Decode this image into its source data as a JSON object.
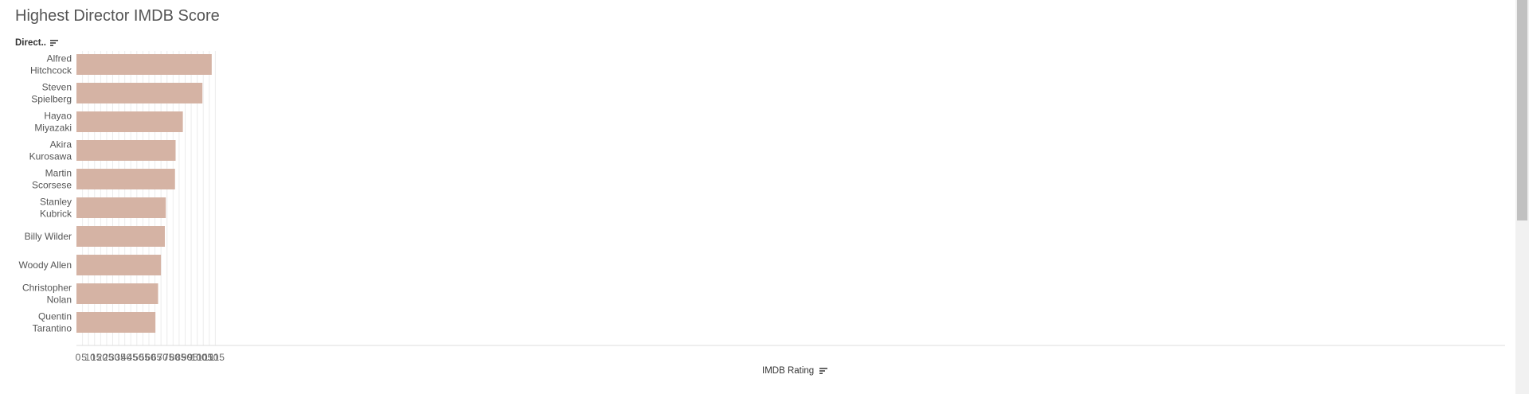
{
  "title": "Highest Director IMDB Score",
  "row_header": "Direct..",
  "colors": {
    "bar": "#d5b3a4",
    "grid": "#ececec",
    "axis_text": "#666666",
    "label_text": "#555555"
  },
  "icons": {
    "row_sort": "sort-descending-icon",
    "axis_sort": "sort-descending-icon"
  },
  "chart_data": {
    "type": "bar",
    "orientation": "horizontal",
    "title": "Highest Director IMDB Score",
    "ylabel": "Direct..",
    "xlabel": "IMDB Rating",
    "categories": [
      [
        "Alfred",
        "Hitchcock"
      ],
      [
        "Steven",
        "Spielberg"
      ],
      [
        "Hayao",
        "Miyazaki"
      ],
      [
        "Akira",
        "Kurosawa"
      ],
      [
        "Martin",
        "Scorsese"
      ],
      [
        "Stanley",
        "Kubrick"
      ],
      [
        "Billy Wilder"
      ],
      [
        "Woody Allen"
      ],
      [
        "Christopher",
        "Nolan"
      ],
      [
        "Quentin",
        "Tarantino"
      ]
    ],
    "values": [
      112.0,
      104.3,
      88.1,
      82.1,
      81.6,
      74.0,
      73.2,
      70.0,
      67.6,
      65.4
    ],
    "xlim": [
      0,
      118
    ],
    "xticks": [
      "0",
      "5",
      "10",
      "15",
      "20",
      "25",
      "30",
      "35",
      "40",
      "45",
      "50",
      "55",
      "60",
      "65",
      "70",
      "75",
      "80",
      "85",
      "90",
      "95",
      "100",
      "105",
      "110",
      "115"
    ],
    "grid": true,
    "legend": "none"
  }
}
